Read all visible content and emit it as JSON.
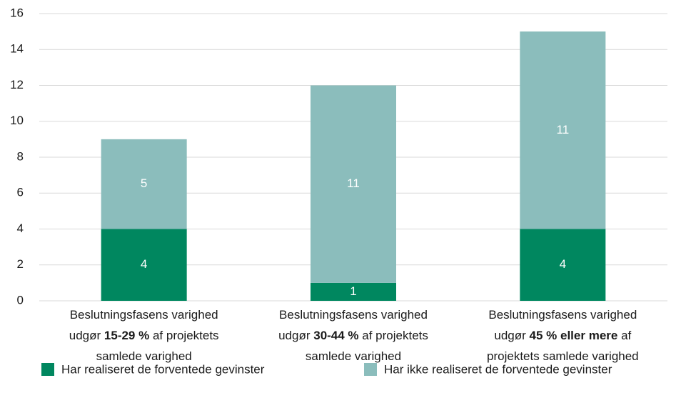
{
  "chart_data": {
    "type": "stacked_bar",
    "categories": [
      [
        [
          {
            "text": "Beslutningsfasens varighed"
          }
        ],
        [
          {
            "text": "udgør "
          },
          {
            "text": "15-29 %",
            "bold": true
          },
          {
            "text": " af projektets"
          }
        ],
        [
          {
            "text": "samlede varighed"
          }
        ]
      ],
      [
        [
          {
            "text": "Beslutningsfasens varighed"
          }
        ],
        [
          {
            "text": "udgør "
          },
          {
            "text": "30-44 %",
            "bold": true
          },
          {
            "text": " af projektets"
          }
        ],
        [
          {
            "text": "samlede varighed"
          }
        ]
      ],
      [
        [
          {
            "text": "Beslutningsfasens varighed"
          }
        ],
        [
          {
            "text": "udgør "
          },
          {
            "text": "45 % eller mere",
            "bold": true
          },
          {
            "text": " af"
          }
        ],
        [
          {
            "text": "projektets samlede varighed"
          }
        ]
      ]
    ],
    "series": [
      {
        "name": "Har realiseret de forventede gevinster",
        "color": "#00875f",
        "values": [
          4,
          1,
          4
        ]
      },
      {
        "name": "Har ikke realiseret de forventede gevinster",
        "color": "#8bbdbc",
        "values": [
          5,
          11,
          11
        ]
      }
    ],
    "ylim": [
      0,
      16
    ],
    "yticks": [
      0,
      2,
      4,
      6,
      8,
      10,
      12,
      14,
      16
    ],
    "grid": true,
    "legend": "bottom"
  }
}
